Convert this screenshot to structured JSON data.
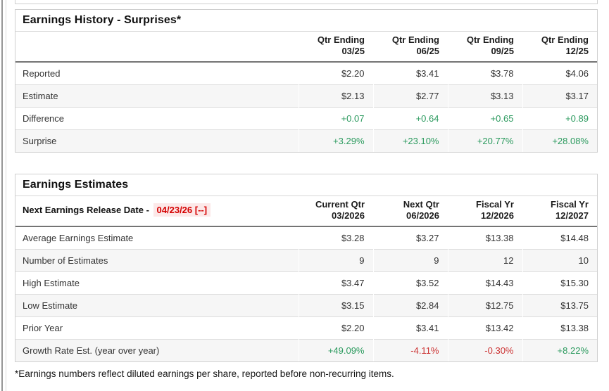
{
  "colors": {
    "positive_green": "#2b9a5e",
    "negative_red": "#cc3333",
    "release_date_red": "#d40000",
    "release_date_bg": "#fce8e8",
    "stripe_gray": "#f6f6f6"
  },
  "history": {
    "title": "Earnings History - Surprises*",
    "columns": [
      {
        "line1": "Qtr Ending",
        "line2": "03/25"
      },
      {
        "line1": "Qtr Ending",
        "line2": "06/25"
      },
      {
        "line1": "Qtr Ending",
        "line2": "09/25"
      },
      {
        "line1": "Qtr Ending",
        "line2": "12/25"
      }
    ],
    "rows": [
      {
        "label": "Reported",
        "values": [
          "$2.20",
          "$3.41",
          "$3.78",
          "$4.06"
        ]
      },
      {
        "label": "Estimate",
        "values": [
          "$2.13",
          "$2.77",
          "$3.13",
          "$3.17"
        ]
      },
      {
        "label": "Difference",
        "values": [
          "+0.07",
          "+0.64",
          "+0.65",
          "+0.89"
        ]
      },
      {
        "label": "Surprise",
        "values": [
          "+3.29%",
          "+23.10%",
          "+20.77%",
          "+28.08%"
        ]
      }
    ]
  },
  "estimates": {
    "title": "Earnings Estimates",
    "release_label": "Next Earnings Release Date -",
    "release_date": "04/23/26 [--]",
    "columns": [
      {
        "line1": "Current Qtr",
        "line2": "03/2026"
      },
      {
        "line1": "Next Qtr",
        "line2": "06/2026"
      },
      {
        "line1": "Fiscal Yr",
        "line2": "12/2026"
      },
      {
        "line1": "Fiscal Yr",
        "line2": "12/2027"
      }
    ],
    "rows": [
      {
        "label": "Average Earnings Estimate",
        "values": [
          "$3.28",
          "$3.27",
          "$13.38",
          "$14.48"
        ]
      },
      {
        "label": "Number of Estimates",
        "values": [
          "9",
          "9",
          "12",
          "10"
        ]
      },
      {
        "label": "High Estimate",
        "values": [
          "$3.47",
          "$3.52",
          "$14.43",
          "$15.30"
        ]
      },
      {
        "label": "Low Estimate",
        "values": [
          "$3.15",
          "$2.84",
          "$12.75",
          "$13.75"
        ]
      },
      {
        "label": "Prior Year",
        "values": [
          "$2.20",
          "$3.41",
          "$13.42",
          "$13.38"
        ]
      },
      {
        "label": "Growth Rate Est. (year over year)",
        "values": [
          "+49.09%",
          "-4.11%",
          "-0.30%",
          "+8.22%"
        ]
      }
    ]
  },
  "footnote": "*Earnings numbers reflect diluted earnings per share, reported before non-recurring items."
}
